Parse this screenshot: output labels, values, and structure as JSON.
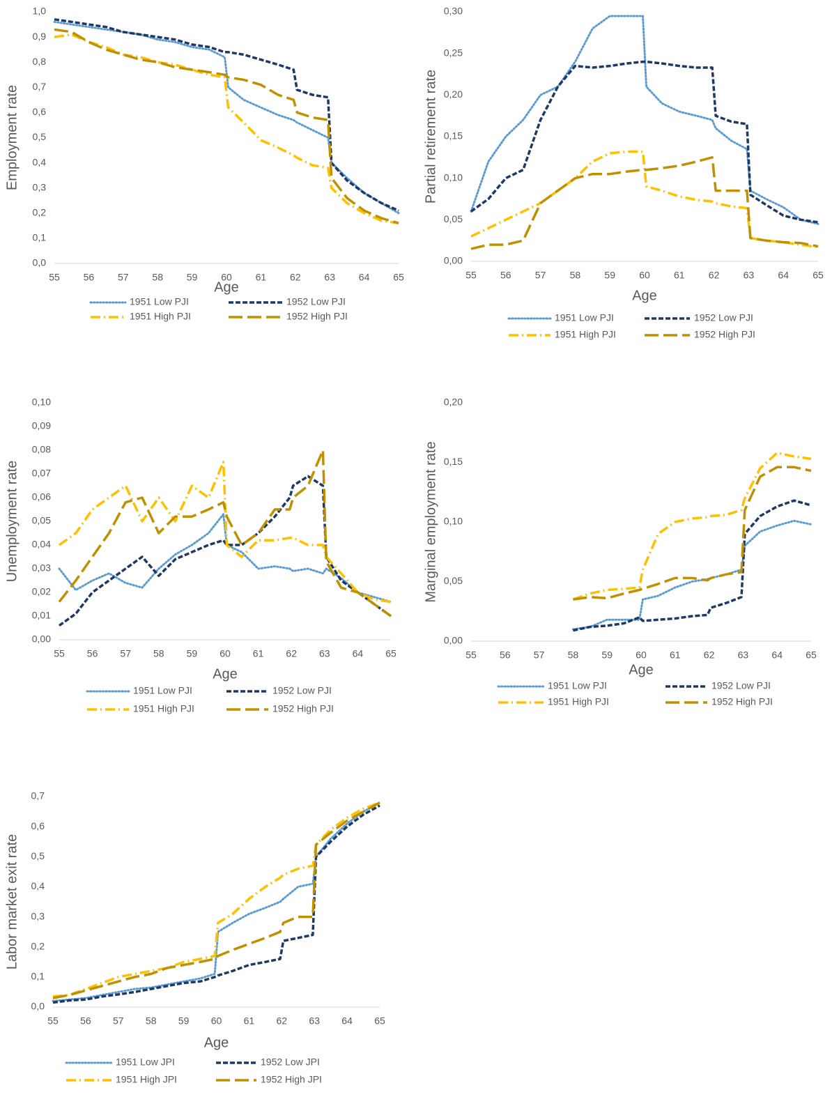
{
  "chart_data": [
    {
      "type": "line",
      "ylabel": "Employment rate",
      "xlabel": "Age",
      "x": [
        55,
        55.5,
        56,
        56.5,
        57,
        57.5,
        58,
        58.5,
        59,
        59.5,
        59.95,
        60.05,
        60.5,
        61,
        61.5,
        61.95,
        62.05,
        62.5,
        62.95,
        63.05,
        63.5,
        64,
        64.5,
        65
      ],
      "xlim": [
        55,
        65
      ],
      "xticks": [
        55,
        56,
        57,
        58,
        59,
        60,
        61,
        62,
        63,
        64,
        65
      ],
      "ylim": [
        0,
        1
      ],
      "yticks": [
        {
          "value": 0,
          "label": "0,0"
        },
        {
          "value": 0.1,
          "label": "0,1"
        },
        {
          "value": 0.2,
          "label": "0,2"
        },
        {
          "value": 0.3,
          "label": "0,3"
        },
        {
          "value": 0.4,
          "label": "0,4"
        },
        {
          "value": 0.5,
          "label": "0,5"
        },
        {
          "value": 0.6,
          "label": "0,6"
        },
        {
          "value": 0.7,
          "label": "0,7"
        },
        {
          "value": 0.8,
          "label": "0,8"
        },
        {
          "value": 0.9,
          "label": "0,9"
        },
        {
          "value": 1,
          "label": "1,0"
        }
      ],
      "series": [
        {
          "name": "1951 Low PJI",
          "color": "#5b9bd5",
          "style": "dotted",
          "values": [
            0.96,
            0.95,
            0.94,
            0.93,
            0.92,
            0.91,
            0.89,
            0.88,
            0.86,
            0.85,
            0.82,
            0.7,
            0.65,
            0.62,
            0.59,
            0.57,
            0.56,
            0.53,
            0.5,
            0.4,
            0.34,
            0.28,
            0.24,
            0.2
          ]
        },
        {
          "name": "1952 Low PJI",
          "color": "#1f3864",
          "style": "dashed",
          "values": [
            0.97,
            0.96,
            0.95,
            0.94,
            0.92,
            0.91,
            0.9,
            0.89,
            0.87,
            0.86,
            0.84,
            0.84,
            0.83,
            0.81,
            0.79,
            0.77,
            0.69,
            0.67,
            0.66,
            0.4,
            0.33,
            0.28,
            0.24,
            0.21
          ]
        },
        {
          "name": "1951 High PJI",
          "color": "#ffc000",
          "style": "dashdot",
          "values": [
            0.9,
            0.91,
            0.88,
            0.86,
            0.83,
            0.82,
            0.8,
            0.79,
            0.77,
            0.75,
            0.74,
            0.62,
            0.56,
            0.49,
            0.46,
            0.43,
            0.42,
            0.39,
            0.38,
            0.3,
            0.24,
            0.2,
            0.17,
            0.16
          ]
        },
        {
          "name": "1952 High PJI",
          "color": "#bf9000",
          "style": "longdash",
          "values": [
            0.93,
            0.92,
            0.88,
            0.85,
            0.83,
            0.81,
            0.8,
            0.78,
            0.77,
            0.76,
            0.75,
            0.74,
            0.73,
            0.71,
            0.67,
            0.65,
            0.6,
            0.58,
            0.57,
            0.34,
            0.26,
            0.21,
            0.18,
            0.16
          ]
        }
      ]
    },
    {
      "type": "line",
      "ylabel": "Partial retirement rate",
      "xlabel": "Age",
      "x": [
        55,
        55.5,
        56,
        56.5,
        57,
        57.5,
        58,
        58.5,
        59,
        59.5,
        59.95,
        60.05,
        60.5,
        61,
        61.5,
        61.95,
        62.05,
        62.5,
        62.95,
        63.05,
        63.5,
        64,
        64.5,
        65
      ],
      "xlim": [
        55,
        65
      ],
      "xticks": [
        55,
        56,
        57,
        58,
        59,
        60,
        61,
        62,
        63,
        64,
        65
      ],
      "ylim": [
        0,
        0.3
      ],
      "yticks": [
        {
          "value": 0,
          "label": "0,00"
        },
        {
          "value": 0.05,
          "label": "0,05"
        },
        {
          "value": 0.1,
          "label": "0,10"
        },
        {
          "value": 0.15,
          "label": "0,15"
        },
        {
          "value": 0.2,
          "label": "0,20"
        },
        {
          "value": 0.25,
          "label": "0,25"
        },
        {
          "value": 0.3,
          "label": "0,30"
        }
      ],
      "series": [
        {
          "name": "1951 Low PJI",
          "color": "#5b9bd5",
          "style": "dotted",
          "values": [
            0.06,
            0.12,
            0.15,
            0.17,
            0.2,
            0.21,
            0.24,
            0.28,
            0.295,
            0.295,
            0.295,
            0.21,
            0.19,
            0.18,
            0.175,
            0.17,
            0.16,
            0.145,
            0.135,
            0.085,
            0.075,
            0.065,
            0.05,
            0.045
          ]
        },
        {
          "name": "1952 Low PJI",
          "color": "#1f3864",
          "style": "dashed",
          "values": [
            0.06,
            0.075,
            0.1,
            0.11,
            0.17,
            0.21,
            0.235,
            0.233,
            0.235,
            0.238,
            0.24,
            0.24,
            0.238,
            0.235,
            0.233,
            0.233,
            0.175,
            0.168,
            0.165,
            0.08,
            0.068,
            0.055,
            0.05,
            0.047
          ]
        },
        {
          "name": "1951 High PJI",
          "color": "#ffc000",
          "style": "dashdot",
          "values": [
            0.03,
            0.04,
            0.05,
            0.06,
            0.07,
            0.085,
            0.1,
            0.12,
            0.13,
            0.132,
            0.132,
            0.09,
            0.085,
            0.078,
            0.074,
            0.072,
            0.07,
            0.066,
            0.064,
            0.028,
            0.025,
            0.023,
            0.02,
            0.017
          ]
        },
        {
          "name": "1952 High PJI",
          "color": "#bf9000",
          "style": "longdash",
          "values": [
            0.015,
            0.02,
            0.02,
            0.025,
            0.07,
            0.085,
            0.1,
            0.105,
            0.105,
            0.108,
            0.11,
            0.11,
            0.112,
            0.115,
            0.12,
            0.125,
            0.085,
            0.085,
            0.085,
            0.028,
            0.025,
            0.023,
            0.022,
            0.018
          ]
        }
      ]
    },
    {
      "type": "line",
      "ylabel": "Unemployment rate",
      "xlabel": "Age",
      "x": [
        55,
        55.5,
        56,
        56.5,
        57,
        57.5,
        58,
        58.5,
        59,
        59.5,
        59.95,
        60.05,
        60.5,
        61,
        61.5,
        61.95,
        62.05,
        62.5,
        62.95,
        63.05,
        63.5,
        64,
        64.5,
        65
      ],
      "xlim": [
        55,
        65
      ],
      "xticks": [
        55,
        56,
        57,
        58,
        59,
        60,
        61,
        62,
        63,
        64,
        65
      ],
      "ylim": [
        0,
        0.1
      ],
      "yticks": [
        {
          "value": 0,
          "label": "0,00"
        },
        {
          "value": 0.01,
          "label": "0,01"
        },
        {
          "value": 0.02,
          "label": "0,02"
        },
        {
          "value": 0.03,
          "label": "0,03"
        },
        {
          "value": 0.04,
          "label": "0,04"
        },
        {
          "value": 0.05,
          "label": "0,05"
        },
        {
          "value": 0.06,
          "label": "0,06"
        },
        {
          "value": 0.07,
          "label": "0,07"
        },
        {
          "value": 0.08,
          "label": "0,08"
        },
        {
          "value": 0.09,
          "label": "0,09"
        },
        {
          "value": 0.1,
          "label": "0,10"
        }
      ],
      "series": [
        {
          "name": "1951 Low PJI",
          "color": "#5b9bd5",
          "style": "dotted",
          "values": [
            0.03,
            0.021,
            0.025,
            0.028,
            0.024,
            0.022,
            0.03,
            0.036,
            0.04,
            0.045,
            0.053,
            0.04,
            0.037,
            0.03,
            0.031,
            0.03,
            0.029,
            0.03,
            0.028,
            0.03,
            0.026,
            0.02,
            0.018,
            0.016
          ]
        },
        {
          "name": "1952 Low PJI",
          "color": "#1f3864",
          "style": "dashed",
          "values": [
            0.006,
            0.011,
            0.02,
            0.025,
            0.03,
            0.035,
            0.027,
            0.034,
            0.037,
            0.04,
            0.042,
            0.04,
            0.04,
            0.045,
            0.052,
            0.06,
            0.065,
            0.069,
            0.065,
            0.035,
            0.025,
            0.02,
            0.015,
            0.01
          ]
        },
        {
          "name": "1951 High PJI",
          "color": "#ffc000",
          "style": "dashdot",
          "values": [
            0.04,
            0.045,
            0.055,
            0.06,
            0.065,
            0.05,
            0.06,
            0.05,
            0.065,
            0.06,
            0.075,
            0.04,
            0.035,
            0.042,
            0.042,
            0.043,
            0.043,
            0.04,
            0.04,
            0.035,
            0.028,
            0.02,
            0.017,
            0.016
          ]
        },
        {
          "name": "1952 High PJI",
          "color": "#bf9000",
          "style": "longdash",
          "values": [
            0.016,
            0.025,
            0.035,
            0.045,
            0.058,
            0.06,
            0.045,
            0.052,
            0.052,
            0.055,
            0.058,
            0.052,
            0.04,
            0.045,
            0.055,
            0.055,
            0.06,
            0.065,
            0.08,
            0.033,
            0.022,
            0.02,
            0.015,
            0.01
          ]
        }
      ]
    },
    {
      "type": "line",
      "ylabel": "Marginal employment rate",
      "xlabel": "Age",
      "x": [
        55,
        55.5,
        56,
        56.5,
        57,
        57.5,
        58,
        58.5,
        59,
        59.5,
        59.95,
        60.05,
        60.5,
        61,
        61.5,
        61.95,
        62.05,
        62.5,
        62.95,
        63.05,
        63.5,
        64,
        64.5,
        65
      ],
      "xlim": [
        55,
        65
      ],
      "xticks": [
        55,
        56,
        57,
        58,
        59,
        60,
        61,
        62,
        63,
        64,
        65
      ],
      "ylim": [
        0,
        0.2
      ],
      "yticks": [
        {
          "value": 0,
          "label": "0,00"
        },
        {
          "value": 0.05,
          "label": "0,05"
        },
        {
          "value": 0.1,
          "label": "0,10"
        },
        {
          "value": 0.15,
          "label": "0,15"
        },
        {
          "value": 0.2,
          "label": "0,20"
        }
      ],
      "series": [
        {
          "name": "1951 Low PJI",
          "color": "#5b9bd5",
          "style": "dotted",
          "values": [
            null,
            null,
            null,
            null,
            null,
            null,
            0.01,
            0.012,
            0.018,
            0.018,
            0.018,
            0.035,
            0.038,
            0.045,
            0.05,
            0.052,
            0.053,
            0.056,
            0.06,
            0.08,
            0.092,
            0.097,
            0.101,
            0.098
          ]
        },
        {
          "name": "1952 Low PJI",
          "color": "#1f3864",
          "style": "dashed",
          "values": [
            null,
            null,
            null,
            null,
            null,
            null,
            0.009,
            0.012,
            0.013,
            0.015,
            0.02,
            0.017,
            0.018,
            0.019,
            0.021,
            0.022,
            0.028,
            0.032,
            0.037,
            0.09,
            0.105,
            0.113,
            0.118,
            0.114
          ]
        },
        {
          "name": "1951 High PJI",
          "color": "#ffc000",
          "style": "dashdot",
          "values": [
            null,
            null,
            null,
            null,
            null,
            null,
            0.035,
            0.04,
            0.043,
            0.044,
            0.045,
            0.06,
            0.09,
            0.1,
            0.103,
            0.104,
            0.105,
            0.106,
            0.11,
            0.12,
            0.145,
            0.158,
            0.155,
            0.153
          ]
        },
        {
          "name": "1952 High PJI",
          "color": "#bf9000",
          "style": "longdash",
          "values": [
            null,
            null,
            null,
            null,
            null,
            null,
            0.035,
            0.037,
            0.036,
            0.04,
            0.043,
            0.044,
            0.048,
            0.053,
            0.053,
            0.051,
            0.053,
            0.056,
            0.058,
            0.11,
            0.138,
            0.146,
            0.146,
            0.143
          ]
        }
      ]
    },
    {
      "type": "line",
      "ylabel": "Labor market exit rate",
      "xlabel": "Age",
      "x": [
        55,
        55.5,
        56,
        56.5,
        57,
        57.5,
        58,
        58.5,
        59,
        59.5,
        59.95,
        60.05,
        60.5,
        61,
        61.5,
        61.95,
        62.05,
        62.5,
        62.95,
        63.05,
        63.5,
        64,
        64.5,
        65
      ],
      "xlim": [
        55,
        65
      ],
      "xticks": [
        55,
        56,
        57,
        58,
        59,
        60,
        61,
        62,
        63,
        64,
        65
      ],
      "ylim": [
        0,
        0.7
      ],
      "yticks": [
        {
          "value": 0,
          "label": "0,0"
        },
        {
          "value": 0.1,
          "label": "0,1"
        },
        {
          "value": 0.2,
          "label": "0,2"
        },
        {
          "value": 0.3,
          "label": "0,3"
        },
        {
          "value": 0.4,
          "label": "0,4"
        },
        {
          "value": 0.5,
          "label": "0,5"
        },
        {
          "value": 0.6,
          "label": "0,6"
        },
        {
          "value": 0.7,
          "label": "0,7"
        }
      ],
      "series": [
        {
          "name": "1951 Low JPI",
          "color": "#5b9bd5",
          "style": "dotted",
          "values": [
            0.02,
            0.025,
            0.03,
            0.04,
            0.05,
            0.06,
            0.065,
            0.075,
            0.085,
            0.095,
            0.11,
            0.25,
            0.28,
            0.31,
            0.33,
            0.35,
            0.36,
            0.4,
            0.41,
            0.5,
            0.56,
            0.61,
            0.65,
            0.68
          ]
        },
        {
          "name": "1952 Low JPI",
          "color": "#1f3864",
          "style": "dashed",
          "values": [
            0.015,
            0.022,
            0.025,
            0.035,
            0.042,
            0.05,
            0.06,
            0.07,
            0.08,
            0.085,
            0.1,
            0.105,
            0.12,
            0.14,
            0.15,
            0.16,
            0.22,
            0.23,
            0.24,
            0.5,
            0.55,
            0.6,
            0.64,
            0.67
          ]
        },
        {
          "name": "1951 High JPI",
          "color": "#ffc000",
          "style": "dashdot",
          "values": [
            0.035,
            0.04,
            0.06,
            0.08,
            0.1,
            0.11,
            0.12,
            0.13,
            0.15,
            0.16,
            0.17,
            0.28,
            0.31,
            0.36,
            0.4,
            0.43,
            0.44,
            0.46,
            0.47,
            0.54,
            0.59,
            0.63,
            0.66,
            0.68
          ]
        },
        {
          "name": "1952 High JPI",
          "color": "#bf9000",
          "style": "longdash",
          "values": [
            0.03,
            0.04,
            0.055,
            0.07,
            0.085,
            0.1,
            0.11,
            0.13,
            0.14,
            0.15,
            0.16,
            0.17,
            0.19,
            0.21,
            0.23,
            0.25,
            0.28,
            0.3,
            0.3,
            0.54,
            0.58,
            0.62,
            0.65,
            0.68
          ]
        }
      ]
    }
  ]
}
